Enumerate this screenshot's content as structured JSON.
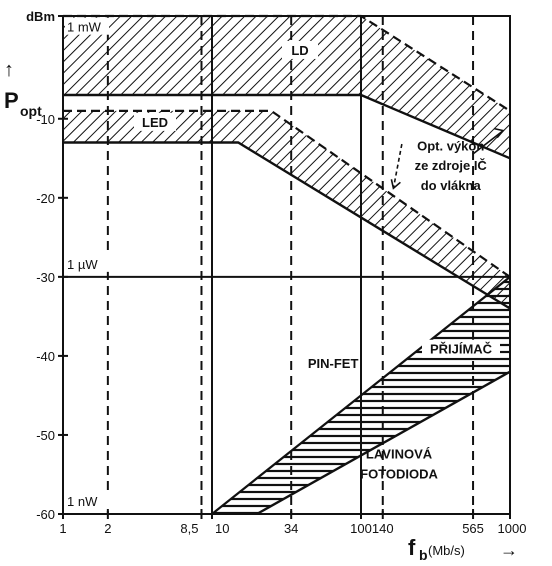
{
  "chart_data": {
    "type": "area",
    "title": "",
    "xlabel": "f",
    "xlabel_sub": "b",
    "xlabel_unit": "(Mb/s)",
    "xlabel_arrow": "→",
    "ylabel": "P",
    "ylabel_sub": "opt",
    "ylabel_arrow": "↑",
    "xscale": "log",
    "xlim": [
      1,
      1000
    ],
    "ylim": [
      -60,
      3
    ],
    "x_ticks": [
      {
        "value": 1,
        "label": "1"
      },
      {
        "value": 2,
        "label": "2"
      },
      {
        "value": 8.5,
        "label": "8,5"
      },
      {
        "value": 10,
        "label": "10"
      },
      {
        "value": 34,
        "label": "34"
      },
      {
        "value": 100,
        "label": "100"
      },
      {
        "value": 140,
        "label": "140"
      },
      {
        "value": 565,
        "label": "565"
      },
      {
        "value": 1000,
        "label": "1000"
      }
    ],
    "y_ticks": [
      {
        "value": 3,
        "label": "dBm"
      },
      {
        "value": -10,
        "label": "-10"
      },
      {
        "value": -20,
        "label": "-20"
      },
      {
        "value": -30,
        "label": "-30"
      },
      {
        "value": -40,
        "label": "-40"
      },
      {
        "value": -50,
        "label": "-50"
      },
      {
        "value": -60,
        "label": "-60"
      }
    ],
    "power_labels": [
      {
        "y": 0,
        "label": "1 mW"
      },
      {
        "y": -30,
        "label": "1 µW"
      },
      {
        "y": -60,
        "label": "1 nW"
      }
    ],
    "dashed_verticals": [
      2,
      8.5,
      34,
      140,
      565
    ],
    "solid_verticals": [
      10,
      100
    ],
    "solid_horizontals": [
      -30
    ],
    "series": [
      {
        "name": "LD",
        "pattern": "diagonal",
        "upper": [
          [
            1,
            3
          ],
          [
            100,
            3
          ],
          [
            1000,
            -9
          ]
        ],
        "lower": [
          [
            1,
            -7
          ],
          [
            100,
            -7
          ],
          [
            1000,
            -15
          ]
        ]
      },
      {
        "name": "LED",
        "pattern": "diagonal",
        "upper": [
          [
            1,
            -9
          ],
          [
            25,
            -9
          ],
          [
            1000,
            -30
          ]
        ],
        "lower": [
          [
            1,
            -13
          ],
          [
            15,
            -13
          ],
          [
            1000,
            -34
          ]
        ]
      },
      {
        "name": "PŘIJÍMAČ",
        "pattern": "horizontal",
        "upper": [
          [
            10,
            -60
          ],
          [
            1000,
            -30
          ]
        ],
        "lower": [
          [
            20,
            -60
          ],
          [
            1000,
            -42
          ]
        ]
      }
    ],
    "annotations": [
      {
        "text": "Opt. výkon",
        "x": 400,
        "y": -14
      },
      {
        "text": "ze zdroje IČ",
        "x": 400,
        "y": -16.5
      },
      {
        "text": "do vlákna",
        "x": 400,
        "y": -19
      },
      {
        "text": "PIN-FET",
        "x": 65,
        "y": -41.5
      },
      {
        "text": "LAVINOVÁ",
        "x": 180,
        "y": -53
      },
      {
        "text": "FOTODIODA",
        "x": 180,
        "y": -55.5
      }
    ],
    "grid": false,
    "legend": "none"
  }
}
